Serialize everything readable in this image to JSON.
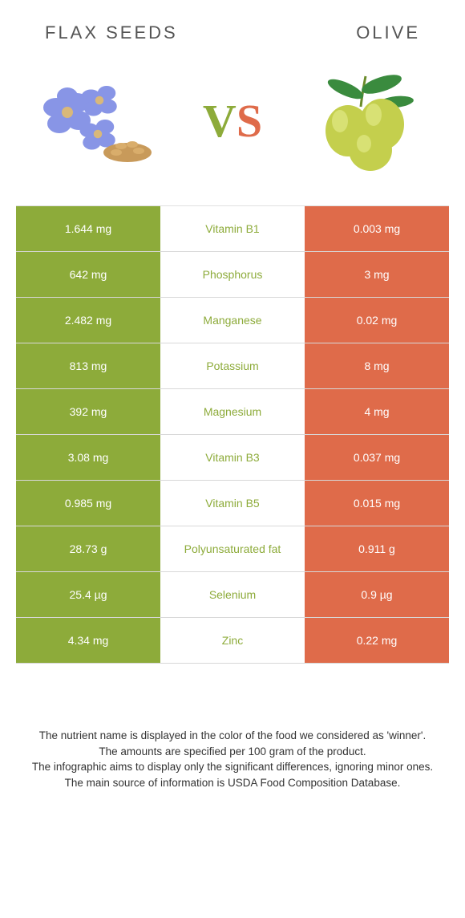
{
  "header": {
    "left_title": "Flax seeds",
    "right_title": "Olive"
  },
  "vs": {
    "v": "V",
    "s": "S"
  },
  "colors": {
    "left_bg": "#8dab3a",
    "right_bg": "#df6b4a",
    "nutrient_winner_left": "#8dab3a",
    "nutrient_winner_right": "#df6b4a"
  },
  "rows": [
    {
      "left": "1.644 mg",
      "nutrient": "Vitamin B1",
      "right": "0.003 mg",
      "winner": "left"
    },
    {
      "left": "642 mg",
      "nutrient": "Phosphorus",
      "right": "3 mg",
      "winner": "left"
    },
    {
      "left": "2.482 mg",
      "nutrient": "Manganese",
      "right": "0.02 mg",
      "winner": "left"
    },
    {
      "left": "813 mg",
      "nutrient": "Potassium",
      "right": "8 mg",
      "winner": "left"
    },
    {
      "left": "392 mg",
      "nutrient": "Magnesium",
      "right": "4 mg",
      "winner": "left"
    },
    {
      "left": "3.08 mg",
      "nutrient": "Vitamin B3",
      "right": "0.037 mg",
      "winner": "left"
    },
    {
      "left": "0.985 mg",
      "nutrient": "Vitamin B5",
      "right": "0.015 mg",
      "winner": "left"
    },
    {
      "left": "28.73 g",
      "nutrient": "Polyunsaturated fat",
      "right": "0.911 g",
      "winner": "left"
    },
    {
      "left": "25.4 µg",
      "nutrient": "Selenium",
      "right": "0.9 µg",
      "winner": "left"
    },
    {
      "left": "4.34 mg",
      "nutrient": "Zinc",
      "right": "0.22 mg",
      "winner": "left"
    }
  ],
  "footnotes": {
    "line1": "The nutrient name is displayed in the color of the food we considered as 'winner'.",
    "line2": "The amounts are specified per 100 gram of the product.",
    "line3": "The infographic aims to display only the significant differences, ignoring minor ones.",
    "line4": "The main source of information is USDA Food Composition Database."
  }
}
